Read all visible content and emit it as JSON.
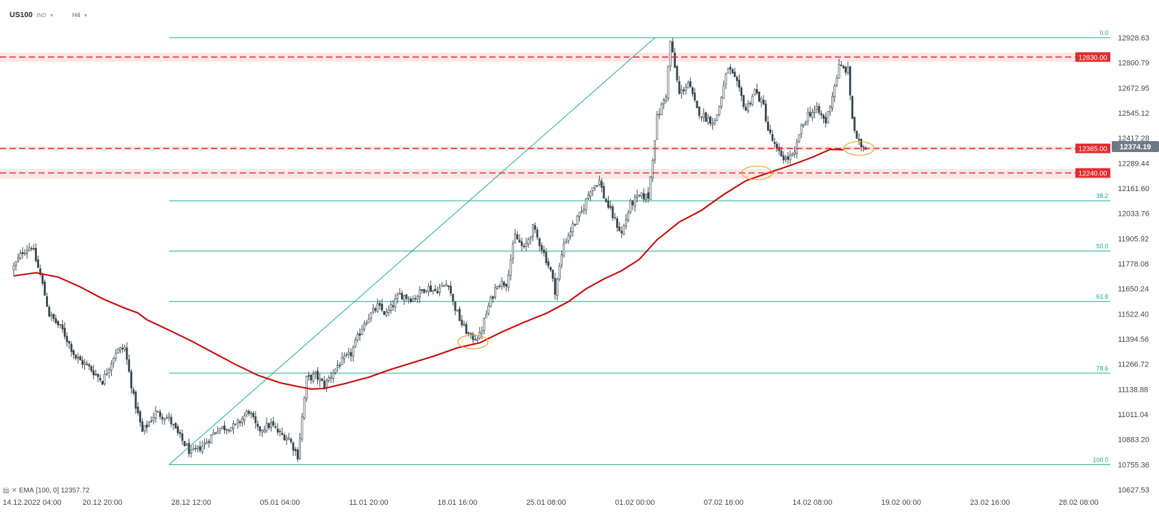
{
  "header": {
    "symbol": "US100",
    "asset_class": "IND",
    "timeframe": "H4"
  },
  "legend": {
    "indicator": "EMA",
    "params": "[100, 0]",
    "value": "12357.72"
  },
  "colors": {
    "ema": "#c40d0d",
    "fib": "#1aa68a",
    "level": "#e02d2d",
    "level_zone": "#f9d6d6",
    "bull_candle": "#ffffff",
    "bear_candle": "#37474f",
    "highlight": "#f0a63a",
    "price_tag": "#6c7a86"
  },
  "chart_data": {
    "type": "candlestick",
    "symbol": "US100",
    "timeframe": "H4",
    "ylim": [
      10627.53,
      12928.63
    ],
    "y_ticks": [
      "12928.63",
      "12800.79",
      "12672.95",
      "12545.12",
      "12417.28",
      "12289.44",
      "12161.60",
      "12033.76",
      "11905.92",
      "11778.08",
      "11650.24",
      "11522.40",
      "11394.56",
      "11266.72",
      "11138.88",
      "11011.04",
      "10883.20",
      "10755.36",
      "10627.53"
    ],
    "x_ticks": [
      {
        "label": "14.12.2022  04:00",
        "i": 0
      },
      {
        "label": "20.12  20:00",
        "i": 40
      },
      {
        "label": "28.12  12:00",
        "i": 80
      },
      {
        "label": "05.01  04:00",
        "i": 120
      },
      {
        "label": "11.01  20:00",
        "i": 160
      },
      {
        "label": "18.01  16:00",
        "i": 200
      },
      {
        "label": "25.01  08:00",
        "i": 240
      },
      {
        "label": "01.02  00:00",
        "i": 280
      },
      {
        "label": "07.02  16:00",
        "i": 320
      },
      {
        "label": "14.02  08:00",
        "i": 360
      },
      {
        "label": "19.02  00:00",
        "i": 400
      },
      {
        "label": "23.02  16:00",
        "i": 440
      },
      {
        "label": "28.02  08:00",
        "i": 480
      }
    ],
    "last_price": "12374.19",
    "horizontal_levels": [
      {
        "label": "12830.00",
        "value": 12830,
        "zone": [
          12806,
          12852
        ]
      },
      {
        "label": "12365.00",
        "value": 12365,
        "zone": [
          12355,
          12375
        ]
      },
      {
        "label": "12240.00",
        "value": 12240,
        "zone": [
          12210,
          12260
        ]
      }
    ],
    "fibonacci": {
      "from_i": 70,
      "to_i": 289,
      "low": 10755.36,
      "high": 12928.63,
      "levels": [
        {
          "label": "0.0",
          "value": 12928.63
        },
        {
          "label": "38.2",
          "value": 12098.4
        },
        {
          "label": "50.0",
          "value": 11842
        },
        {
          "label": "61.8",
          "value": 11585.6
        },
        {
          "label": "78.6",
          "value": 11220.6
        },
        {
          "label": "100.0",
          "value": 10755.36
        }
      ]
    },
    "ema_series": {
      "name": "EMA 100",
      "points": [
        [
          0,
          11716
        ],
        [
          10,
          11732
        ],
        [
          20,
          11710
        ],
        [
          30,
          11660
        ],
        [
          40,
          11600
        ],
        [
          50,
          11552
        ],
        [
          56,
          11527
        ],
        [
          60,
          11493
        ],
        [
          70,
          11440
        ],
        [
          80,
          11385
        ],
        [
          90,
          11325
        ],
        [
          100,
          11265
        ],
        [
          110,
          11210
        ],
        [
          120,
          11172
        ],
        [
          128,
          11153
        ],
        [
          134,
          11140
        ],
        [
          140,
          11143
        ],
        [
          150,
          11170
        ],
        [
          160,
          11200
        ],
        [
          170,
          11240
        ],
        [
          180,
          11275
        ],
        [
          190,
          11310
        ],
        [
          200,
          11350
        ],
        [
          210,
          11375
        ],
        [
          220,
          11430
        ],
        [
          230,
          11480
        ],
        [
          240,
          11525
        ],
        [
          250,
          11585
        ],
        [
          258,
          11650
        ],
        [
          266,
          11700
        ],
        [
          274,
          11742
        ],
        [
          282,
          11800
        ],
        [
          290,
          11900
        ],
        [
          300,
          11990
        ],
        [
          310,
          12050
        ],
        [
          320,
          12130
        ],
        [
          330,
          12200
        ],
        [
          340,
          12240
        ],
        [
          350,
          12278
        ],
        [
          360,
          12320
        ],
        [
          368,
          12360
        ],
        [
          374,
          12358
        ]
      ]
    },
    "anchors": [
      [
        0,
        11760
      ],
      [
        4,
        11840
      ],
      [
        8,
        11870
      ],
      [
        12,
        11720
      ],
      [
        16,
        11520
      ],
      [
        22,
        11440
      ],
      [
        28,
        11300
      ],
      [
        34,
        11250
      ],
      [
        40,
        11180
      ],
      [
        46,
        11330
      ],
      [
        50,
        11350
      ],
      [
        54,
        11100
      ],
      [
        58,
        10920
      ],
      [
        64,
        11020
      ],
      [
        70,
        10990
      ],
      [
        74,
        10910
      ],
      [
        80,
        10810
      ],
      [
        86,
        10860
      ],
      [
        92,
        10940
      ],
      [
        100,
        10950
      ],
      [
        106,
        11030
      ],
      [
        110,
        10930
      ],
      [
        116,
        10960
      ],
      [
        120,
        10910
      ],
      [
        124,
        10890
      ],
      [
        128,
        10800
      ],
      [
        132,
        11190
      ],
      [
        136,
        11210
      ],
      [
        140,
        11160
      ],
      [
        146,
        11260
      ],
      [
        152,
        11320
      ],
      [
        158,
        11480
      ],
      [
        164,
        11560
      ],
      [
        168,
        11520
      ],
      [
        174,
        11620
      ],
      [
        180,
        11600
      ],
      [
        186,
        11660
      ],
      [
        190,
        11640
      ],
      [
        196,
        11680
      ],
      [
        198,
        11580
      ],
      [
        202,
        11470
      ],
      [
        206,
        11400
      ],
      [
        210,
        11410
      ],
      [
        214,
        11560
      ],
      [
        218,
        11680
      ],
      [
        222,
        11680
      ],
      [
        226,
        11920
      ],
      [
        230,
        11850
      ],
      [
        234,
        11960
      ],
      [
        238,
        11860
      ],
      [
        242,
        11740
      ],
      [
        244,
        11640
      ],
      [
        248,
        11880
      ],
      [
        252,
        11970
      ],
      [
        256,
        12040
      ],
      [
        260,
        12160
      ],
      [
        264,
        12200
      ],
      [
        266,
        12120
      ],
      [
        270,
        12020
      ],
      [
        274,
        11930
      ],
      [
        278,
        12080
      ],
      [
        282,
        12120
      ],
      [
        286,
        12120
      ],
      [
        290,
        12520
      ],
      [
        294,
        12640
      ],
      [
        296,
        12910
      ],
      [
        300,
        12640
      ],
      [
        304,
        12700
      ],
      [
        308,
        12560
      ],
      [
        312,
        12520
      ],
      [
        316,
        12500
      ],
      [
        318,
        12580
      ],
      [
        322,
        12780
      ],
      [
        326,
        12690
      ],
      [
        330,
        12560
      ],
      [
        334,
        12660
      ],
      [
        338,
        12580
      ],
      [
        340,
        12460
      ],
      [
        344,
        12350
      ],
      [
        348,
        12310
      ],
      [
        352,
        12330
      ],
      [
        354,
        12440
      ],
      [
        358,
        12540
      ],
      [
        362,
        12560
      ],
      [
        366,
        12500
      ],
      [
        368,
        12590
      ],
      [
        372,
        12780
      ],
      [
        376,
        12760
      ],
      [
        378,
        12520
      ],
      [
        380,
        12400
      ],
      [
        382,
        12380
      ],
      [
        384,
        12374
      ]
    ],
    "highlights": [
      [
        207,
        11380
      ],
      [
        335,
        12240
      ],
      [
        381,
        12365
      ]
    ]
  }
}
